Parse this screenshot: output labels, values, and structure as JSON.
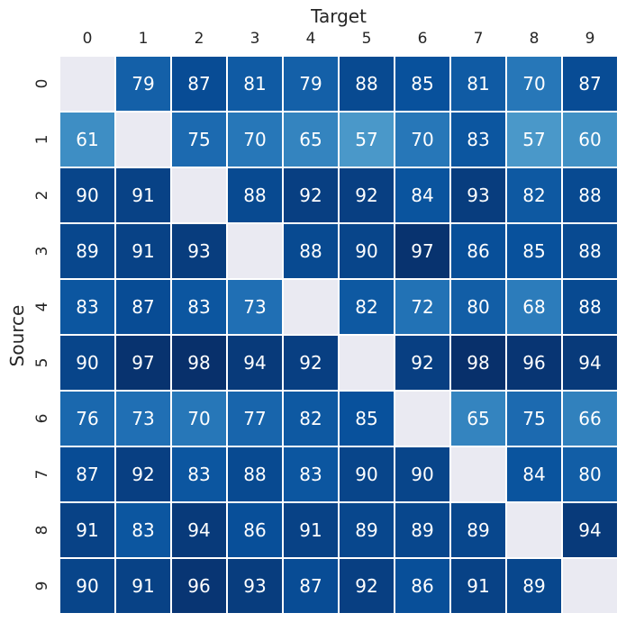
{
  "chart_data": {
    "type": "heatmap",
    "xlabel": "Target",
    "ylabel": "Source",
    "x_categories": [
      "0",
      "1",
      "2",
      "3",
      "4",
      "5",
      "6",
      "7",
      "8",
      "9"
    ],
    "y_categories": [
      "0",
      "1",
      "2",
      "3",
      "4",
      "5",
      "6",
      "7",
      "8",
      "9"
    ],
    "values": [
      [
        null,
        79,
        87,
        81,
        79,
        88,
        85,
        81,
        70,
        87
      ],
      [
        61,
        null,
        75,
        70,
        65,
        57,
        70,
        83,
        57,
        60
      ],
      [
        90,
        91,
        null,
        88,
        92,
        92,
        84,
        93,
        82,
        88
      ],
      [
        89,
        91,
        93,
        null,
        88,
        90,
        97,
        86,
        85,
        88
      ],
      [
        83,
        87,
        83,
        73,
        null,
        82,
        72,
        80,
        68,
        88
      ],
      [
        90,
        97,
        98,
        94,
        92,
        null,
        92,
        98,
        96,
        94
      ],
      [
        76,
        73,
        70,
        77,
        82,
        85,
        null,
        65,
        75,
        66
      ],
      [
        87,
        92,
        83,
        88,
        83,
        90,
        90,
        null,
        84,
        80
      ],
      [
        91,
        83,
        94,
        86,
        91,
        89,
        89,
        89,
        null,
        94
      ],
      [
        90,
        91,
        96,
        93,
        87,
        92,
        86,
        91,
        89,
        null
      ]
    ],
    "colormap": "Blues",
    "value_range": [
      57,
      98
    ],
    "missing_color": "#eaeaf2",
    "grid_line_color": "#ffffff",
    "x_axis_position": "top"
  }
}
